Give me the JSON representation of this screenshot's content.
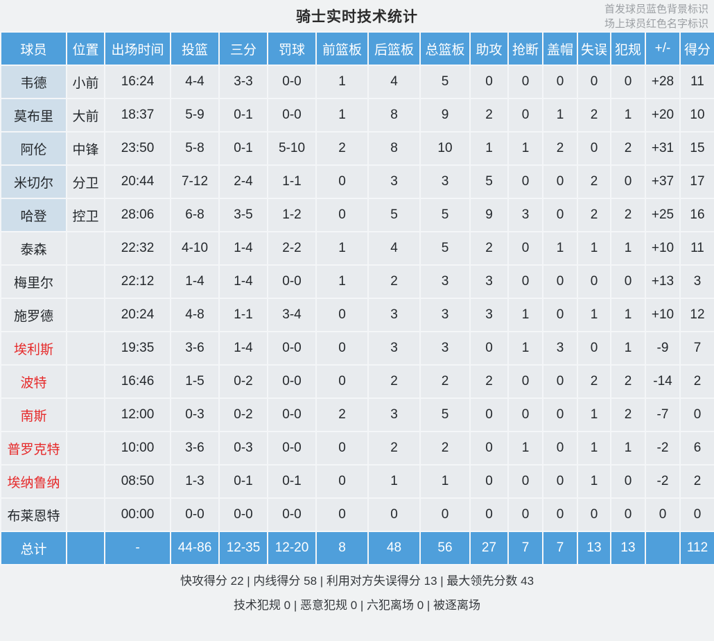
{
  "page": {
    "title": "骑士实时技术统计",
    "legend_line1": "首发球员蓝色背景标识",
    "legend_line2": "场上球员红色名字标识"
  },
  "colors": {
    "header_blue": "#4F9FDB",
    "starter_name_bg": "#CFDEEA",
    "cell_bg": "#E8EBEE",
    "on_court_red": "#E62A2A",
    "page_bg": "#F0F2F3"
  },
  "table": {
    "headers": [
      "球员",
      "位置",
      "出场时间",
      "投篮",
      "三分",
      "罚球",
      "前篮板",
      "后篮板",
      "总篮板",
      "助攻",
      "抢断",
      "盖帽",
      "失误",
      "犯规",
      "+/-",
      "得分"
    ],
    "rows": [
      {
        "starter": true,
        "on_court": false,
        "cells": [
          "韦德",
          "小前",
          "16:24",
          "4-4",
          "3-3",
          "0-0",
          "1",
          "4",
          "5",
          "0",
          "0",
          "0",
          "0",
          "0",
          "+28",
          "11"
        ]
      },
      {
        "starter": true,
        "on_court": false,
        "cells": [
          "莫布里",
          "大前",
          "18:37",
          "5-9",
          "0-1",
          "0-0",
          "1",
          "8",
          "9",
          "2",
          "0",
          "1",
          "2",
          "1",
          "+20",
          "10"
        ]
      },
      {
        "starter": true,
        "on_court": false,
        "cells": [
          "阿伦",
          "中锋",
          "23:50",
          "5-8",
          "0-1",
          "5-10",
          "2",
          "8",
          "10",
          "1",
          "1",
          "2",
          "0",
          "2",
          "+31",
          "15"
        ]
      },
      {
        "starter": true,
        "on_court": false,
        "cells": [
          "米切尔",
          "分卫",
          "20:44",
          "7-12",
          "2-4",
          "1-1",
          "0",
          "3",
          "3",
          "5",
          "0",
          "0",
          "2",
          "0",
          "+37",
          "17"
        ]
      },
      {
        "starter": true,
        "on_court": false,
        "cells": [
          "哈登",
          "控卫",
          "28:06",
          "6-8",
          "3-5",
          "1-2",
          "0",
          "5",
          "5",
          "9",
          "3",
          "0",
          "2",
          "2",
          "+25",
          "16"
        ]
      },
      {
        "starter": false,
        "on_court": false,
        "cells": [
          "泰森",
          "",
          "22:32",
          "4-10",
          "1-4",
          "2-2",
          "1",
          "4",
          "5",
          "2",
          "0",
          "1",
          "1",
          "1",
          "+10",
          "11"
        ]
      },
      {
        "starter": false,
        "on_court": false,
        "cells": [
          "梅里尔",
          "",
          "22:12",
          "1-4",
          "1-4",
          "0-0",
          "1",
          "2",
          "3",
          "3",
          "0",
          "0",
          "0",
          "0",
          "+13",
          "3"
        ]
      },
      {
        "starter": false,
        "on_court": false,
        "cells": [
          "施罗德",
          "",
          "20:24",
          "4-8",
          "1-1",
          "3-4",
          "0",
          "3",
          "3",
          "3",
          "1",
          "0",
          "1",
          "1",
          "+10",
          "12"
        ]
      },
      {
        "starter": false,
        "on_court": true,
        "cells": [
          "埃利斯",
          "",
          "19:35",
          "3-6",
          "1-4",
          "0-0",
          "0",
          "3",
          "3",
          "0",
          "1",
          "3",
          "0",
          "1",
          "-9",
          "7"
        ]
      },
      {
        "starter": false,
        "on_court": true,
        "cells": [
          "波特",
          "",
          "16:46",
          "1-5",
          "0-2",
          "0-0",
          "0",
          "2",
          "2",
          "2",
          "0",
          "0",
          "2",
          "2",
          "-14",
          "2"
        ]
      },
      {
        "starter": false,
        "on_court": true,
        "cells": [
          "南斯",
          "",
          "12:00",
          "0-3",
          "0-2",
          "0-0",
          "2",
          "3",
          "5",
          "0",
          "0",
          "0",
          "1",
          "2",
          "-7",
          "0"
        ]
      },
      {
        "starter": false,
        "on_court": true,
        "cells": [
          "普罗克特",
          "",
          "10:00",
          "3-6",
          "0-3",
          "0-0",
          "0",
          "2",
          "2",
          "0",
          "1",
          "0",
          "1",
          "1",
          "-2",
          "6"
        ]
      },
      {
        "starter": false,
        "on_court": true,
        "cells": [
          "埃纳鲁纳",
          "",
          "08:50",
          "1-3",
          "0-1",
          "0-1",
          "0",
          "1",
          "1",
          "0",
          "0",
          "0",
          "1",
          "0",
          "-2",
          "2"
        ]
      },
      {
        "starter": false,
        "on_court": false,
        "cells": [
          "布莱恩特",
          "",
          "00:00",
          "0-0",
          "0-0",
          "0-0",
          "0",
          "0",
          "0",
          "0",
          "0",
          "0",
          "0",
          "0",
          "0",
          "0"
        ]
      }
    ],
    "total": {
      "cells": [
        "总计",
        "",
        "-",
        "44-86",
        "12-35",
        "12-20",
        "8",
        "48",
        "56",
        "27",
        "7",
        "7",
        "13",
        "13",
        "",
        "112"
      ]
    }
  },
  "footer": {
    "line1": "快攻得分 22 | 内线得分 58 | 利用对方失误得分 13 | 最大领先分数 43",
    "line2": "技术犯规 0 | 恶意犯规 0 | 六犯离场 0 | 被逐离场"
  }
}
